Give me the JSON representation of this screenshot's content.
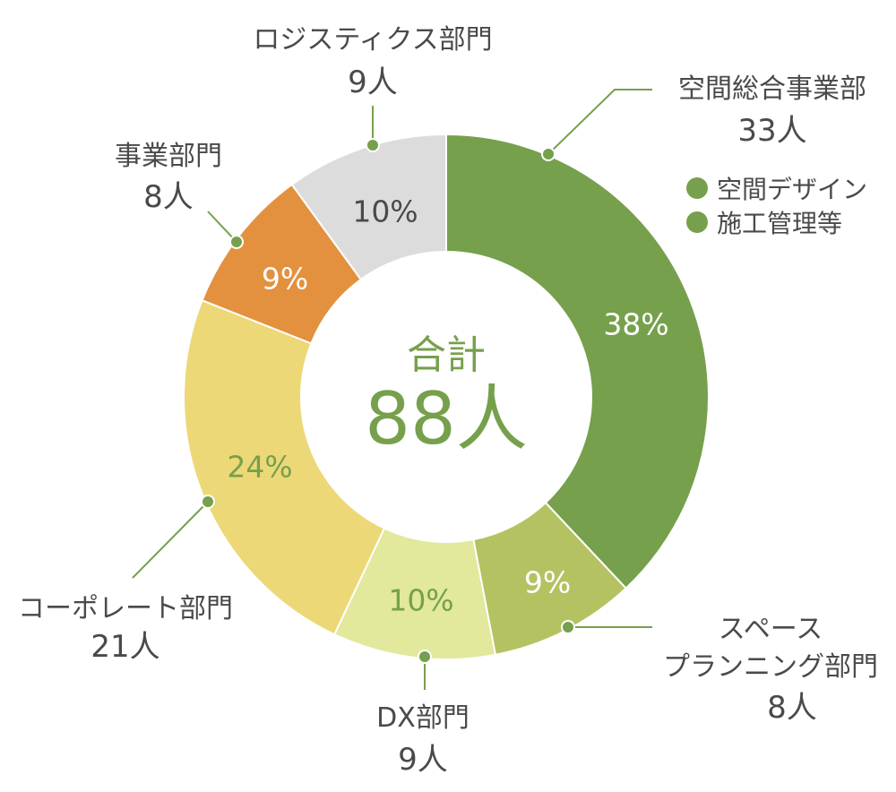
{
  "chart_data": {
    "type": "pie",
    "donut": true,
    "center_title": "合計",
    "center_value": "88人",
    "slices": [
      {
        "label": "空間総合事業部",
        "count": "33人",
        "percent": 38,
        "percent_label": "38%",
        "color": "#76a04c",
        "text_color": "#ffffff"
      },
      {
        "label": "スペース プランニング部門",
        "label_lines": [
          "スペース",
          "プランニング部門"
        ],
        "count": "8人",
        "percent": 9,
        "percent_label": "9%",
        "color": "#b5c262",
        "text_color": "#ffffff"
      },
      {
        "label": "DX部門",
        "count": "9人",
        "percent": 10,
        "percent_label": "10%",
        "color": "#e2e89c",
        "text_color": "#76a04c"
      },
      {
        "label": "コーポレート部門",
        "count": "21人",
        "percent": 24,
        "percent_label": "24%",
        "color": "#edd877",
        "text_color": "#76a04c"
      },
      {
        "label": "事業部門",
        "count": "8人",
        "percent": 9,
        "percent_label": "9%",
        "color": "#e3913f",
        "text_color": "#ffffff"
      },
      {
        "label": "ロジスティクス部門",
        "count": "9人",
        "percent": 10,
        "percent_label": "10%",
        "color": "#dcdcdc",
        "text_color": "#4a4a4a"
      }
    ],
    "legend": [
      "空間デザイン",
      "施工管理等"
    ],
    "legend_color": "#76a04c",
    "leader_color": "#76a04c"
  }
}
